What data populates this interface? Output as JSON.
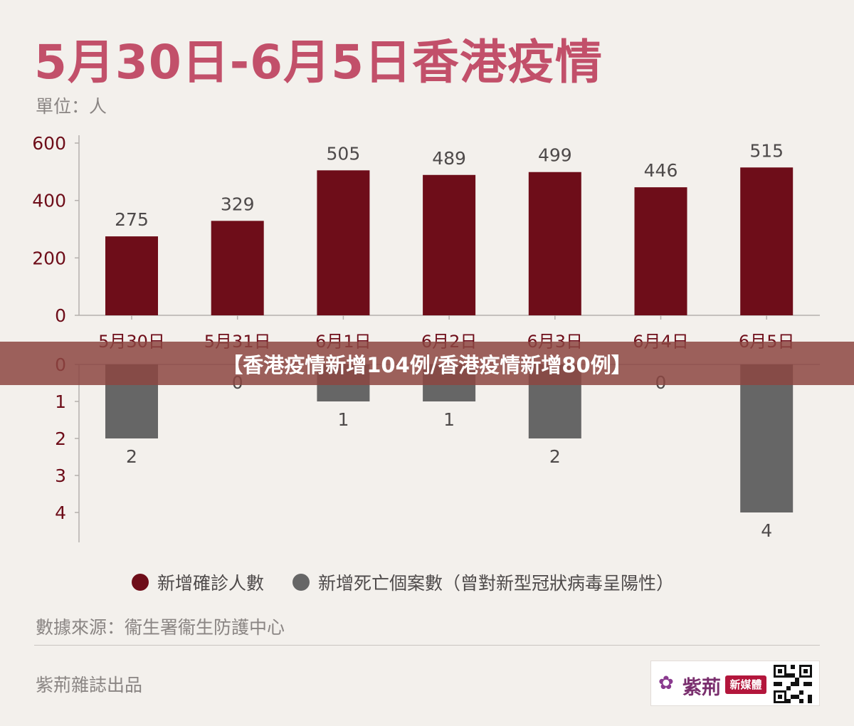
{
  "title": "5月30日-6月5日香港疫情",
  "unit_label": "單位：人",
  "overlay_text": "【香港疫情新增104例/香港疫情新增80例】",
  "legend": [
    {
      "label": "新增確診人數",
      "color": "#6e0d19"
    },
    {
      "label": "新增死亡個案數（曾對新型冠狀病毒呈陽性）",
      "color": "#666666"
    }
  ],
  "source": "數據來源：衞生署衞生防護中心",
  "publisher": "紫荊雜誌出品",
  "logo": {
    "name": "紫荊",
    "badge": "新媒體",
    "flower_icon": "orchid-icon"
  },
  "colors": {
    "accent": "#c2506a",
    "confirmed": "#6e0d19",
    "deaths": "#666666",
    "axis_text": "#6e0d19"
  },
  "chart_data": [
    {
      "type": "bar",
      "categories": [
        "5月30日",
        "5月31日",
        "6月1日",
        "6月2日",
        "6月3日",
        "6月4日",
        "6月5日"
      ],
      "series": [
        {
          "name": "新增確診人數",
          "values": [
            275,
            329,
            505,
            489,
            499,
            446,
            515
          ]
        }
      ],
      "ylim": [
        0,
        600
      ],
      "yticks": [
        0,
        200,
        400,
        600
      ],
      "data_labels": true
    },
    {
      "type": "bar",
      "categories": [
        "5月30日",
        "5月31日",
        "6月1日",
        "6月2日",
        "6月3日",
        "6月4日",
        "6月5日"
      ],
      "series": [
        {
          "name": "新增死亡個案數（曾對新型冠狀病毒呈陽性）",
          "values": [
            2,
            0,
            1,
            1,
            2,
            0,
            4
          ]
        }
      ],
      "ylim": [
        0,
        4
      ],
      "yticks": [
        0,
        1,
        2,
        3,
        4
      ],
      "orientation": "downward",
      "data_labels": true
    }
  ]
}
